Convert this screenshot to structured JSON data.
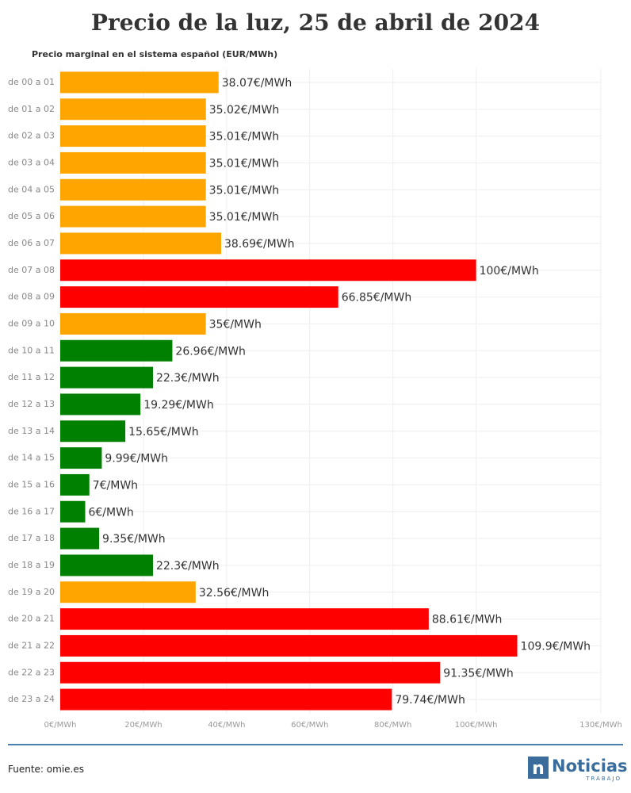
{
  "chart_data": {
    "type": "bar",
    "orientation": "horizontal",
    "title": "Precio de la luz, 25 de abril de 2024",
    "subtitle": "Precio marginal en el sistema español (EUR/MWh)",
    "categories": [
      "de 00 a 01",
      "de 01 a 02",
      "de 02 a 03",
      "de 03 a 04",
      "de 04 a 05",
      "de 05 a 06",
      "de 06 a 07",
      "de 07 a 08",
      "de 08 a 09",
      "de 09 a 10",
      "de 10 a 11",
      "de 11 a 12",
      "de 12 a 13",
      "de 13 a 14",
      "de 14 a 15",
      "de 15 a 16",
      "de 16 a 17",
      "de 17 a 18",
      "de 18 a 19",
      "de 19 a 20",
      "de 20 a 21",
      "de 21 a 22",
      "de 22 a 23",
      "de 23 a 24"
    ],
    "values": [
      38.07,
      35.02,
      35.01,
      35.01,
      35.01,
      35.01,
      38.69,
      100,
      66.85,
      35,
      26.96,
      22.3,
      19.29,
      15.65,
      9.99,
      7,
      6,
      9.35,
      22.3,
      32.56,
      88.61,
      109.9,
      91.35,
      79.74
    ],
    "value_labels": [
      "38.07€/MWh",
      "35.02€/MWh",
      "35.01€/MWh",
      "35.01€/MWh",
      "35.01€/MWh",
      "35.01€/MWh",
      "38.69€/MWh",
      "100€/MWh",
      "66.85€/MWh",
      "35€/MWh",
      "26.96€/MWh",
      "22.3€/MWh",
      "19.29€/MWh",
      "15.65€/MWh",
      "9.99€/MWh",
      "7€/MWh",
      "6€/MWh",
      "9.35€/MWh",
      "22.3€/MWh",
      "32.56€/MWh",
      "88.61€/MWh",
      "109.9€/MWh",
      "91.35€/MWh",
      "79.74€/MWh"
    ],
    "colors": [
      "#ffa500",
      "#ffa500",
      "#ffa500",
      "#ffa500",
      "#ffa500",
      "#ffa500",
      "#ffa500",
      "#ff0000",
      "#ff0000",
      "#ffa500",
      "#008000",
      "#008000",
      "#008000",
      "#008000",
      "#008000",
      "#008000",
      "#008000",
      "#008000",
      "#008000",
      "#ffa500",
      "#ff0000",
      "#ff0000",
      "#ff0000",
      "#ff0000"
    ],
    "xlim": [
      0,
      130
    ],
    "xticks": [
      {
        "value": 0,
        "label": "0€/MWh"
      },
      {
        "value": 20,
        "label": "20€/MWh"
      },
      {
        "value": 40,
        "label": "40€/MWh"
      },
      {
        "value": 60,
        "label": "60€/MWh"
      },
      {
        "value": 80,
        "label": "80€/MWh"
      },
      {
        "value": 100,
        "label": "100€/MWh"
      },
      {
        "value": 130,
        "label": "130€/MWh"
      }
    ],
    "grid": true
  },
  "footer": {
    "source": "Fuente: omie.es",
    "logo": "Noticias",
    "logo_sub": "TRABAJO"
  }
}
